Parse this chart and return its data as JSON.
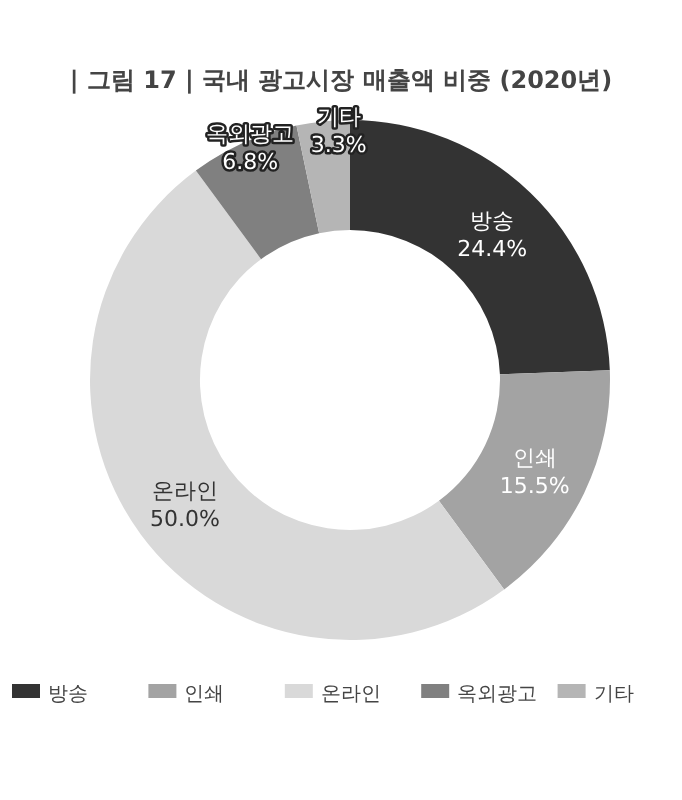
{
  "chart_data": {
    "type": "donut",
    "title": "| 그림 17 |  국내 광고시장 매출액 비중 (2020년)",
    "categories": [
      "방송",
      "인쇄",
      "온라인",
      "옥외광고",
      "기타"
    ],
    "values": [
      24.4,
      15.5,
      50.0,
      6.8,
      3.3
    ],
    "colors": [
      "#333333",
      "#a3a3a3",
      "#d9d9d9",
      "#808080",
      "#b5b5b5"
    ],
    "value_labels": [
      "24.4%",
      "15.5%",
      "50.0%",
      "6.8%",
      "3.3%"
    ],
    "legend": "bottom"
  }
}
